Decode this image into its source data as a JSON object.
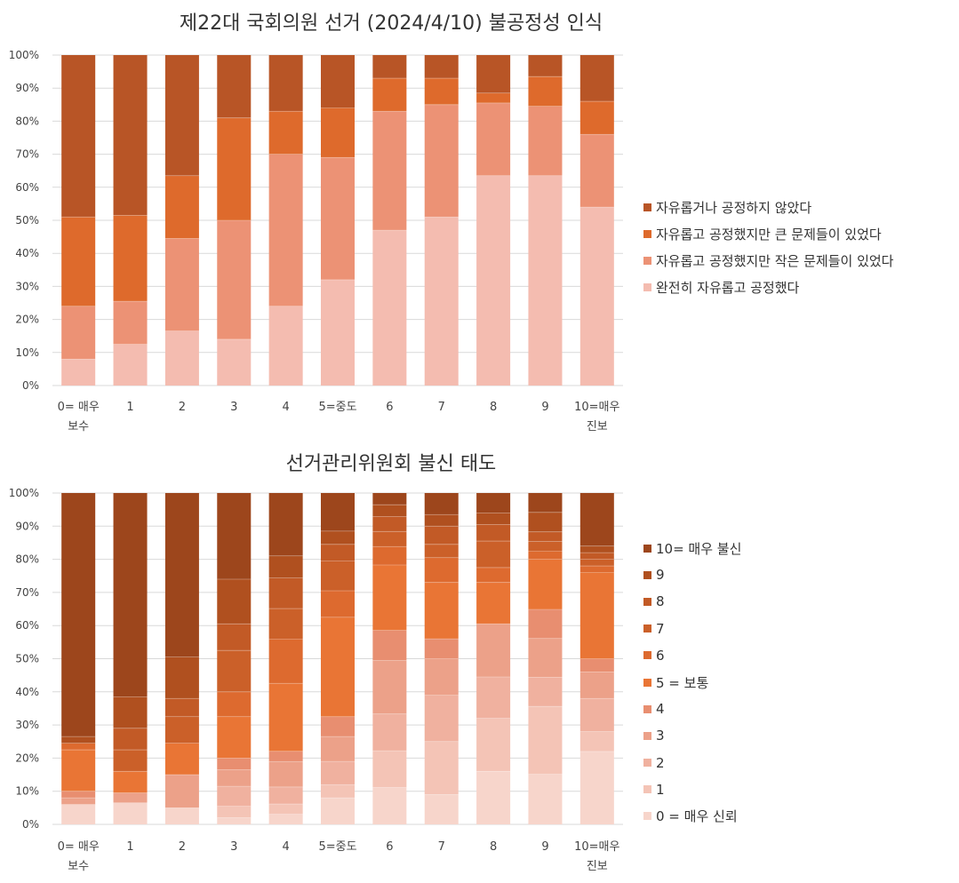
{
  "chart_data": [
    {
      "type": "bar",
      "stacked": true,
      "percent": true,
      "title": "제22대 국회의원 선거 (2024/4/10) 불공정성 인식",
      "categories": [
        [
          "0= 매우",
          "보수"
        ],
        [
          "1"
        ],
        [
          "2"
        ],
        [
          "3"
        ],
        [
          "4"
        ],
        [
          "5=중도"
        ],
        [
          "6"
        ],
        [
          "7"
        ],
        [
          "8"
        ],
        [
          "9"
        ],
        [
          "10=매우",
          "진보"
        ]
      ],
      "ylim": [
        0,
        100
      ],
      "yticks": [
        "0%",
        "10%",
        "20%",
        "30%",
        "40%",
        "50%",
        "60%",
        "70%",
        "80%",
        "90%",
        "100%"
      ],
      "grid": true,
      "legend_position": "right",
      "series": [
        {
          "name": "완전히 자유롭고 공정했다",
          "color": "#f4bcb0",
          "values": [
            8,
            12.5,
            16.5,
            14,
            24,
            32,
            47,
            51,
            63.5,
            63.5,
            54
          ]
        },
        {
          "name": "자유롭고 공정했지만 작은 문제들이 있었다",
          "color": "#ec9275",
          "values": [
            16,
            13,
            28,
            36,
            46,
            37,
            36,
            34,
            22,
            21,
            22
          ]
        },
        {
          "name": "자유롭고 공정했지만 큰 문제들이 있었다",
          "color": "#de6a2c",
          "values": [
            27,
            26,
            19,
            31,
            13,
            15,
            10,
            8,
            3,
            9,
            10
          ]
        },
        {
          "name": "자유롭거나 공정하지 않았다",
          "color": "#b85526",
          "values": [
            49,
            48.5,
            36.5,
            19,
            17,
            16,
            7,
            7,
            11.5,
            6.5,
            14
          ]
        }
      ],
      "legend_order": [
        3,
        2,
        1,
        0
      ]
    },
    {
      "type": "bar",
      "stacked": true,
      "percent": true,
      "title": "선거관리위원회 불신 태도",
      "categories": [
        [
          "0= 매우",
          "보수"
        ],
        [
          "1"
        ],
        [
          "2"
        ],
        [
          "3"
        ],
        [
          "4"
        ],
        [
          "5=중도"
        ],
        [
          "6"
        ],
        [
          "7"
        ],
        [
          "8"
        ],
        [
          "9"
        ],
        [
          "10=매우",
          "진보"
        ]
      ],
      "ylim": [
        0,
        100
      ],
      "yticks": [
        "0%",
        "10%",
        "20%",
        "30%",
        "40%",
        "50%",
        "60%",
        "70%",
        "80%",
        "90%",
        "100%"
      ],
      "grid": true,
      "legend_position": "right",
      "series": [
        {
          "name": "0 = 매우 신뢰",
          "color": "#f7d5cb",
          "values": [
            6,
            6.5,
            5,
            2,
            3,
            8,
            11,
            9,
            16,
            15.5,
            22
          ]
        },
        {
          "name": "1",
          "color": "#f4c4b6",
          "values": [
            0,
            0,
            0,
            3.5,
            3,
            4,
            11,
            16,
            16,
            21,
            6
          ]
        },
        {
          "name": "2",
          "color": "#f0b19f",
          "values": [
            0,
            0,
            0,
            6,
            5,
            7,
            11,
            14,
            12.5,
            9,
            10
          ]
        },
        {
          "name": "3",
          "color": "#eca189",
          "values": [
            2,
            3,
            10,
            5,
            7.5,
            7.5,
            16,
            11,
            16,
            12,
            8
          ]
        },
        {
          "name": "4",
          "color": "#e88e70",
          "values": [
            2,
            0,
            0,
            3.5,
            3,
            6,
            9,
            6,
            0,
            9,
            4
          ]
        },
        {
          "name": "5 = 보통",
          "color": "#e97535",
          "values": [
            12.5,
            6.5,
            9.5,
            12.5,
            20,
            30,
            19.5,
            17,
            12.5,
            15.5,
            26
          ]
        },
        {
          "name": "6",
          "color": "#dd6a2f",
          "values": [
            2,
            0,
            0,
            7.5,
            13,
            8,
            5.5,
            7.5,
            4.5,
            2.5,
            2
          ]
        },
        {
          "name": "7",
          "color": "#cb6029",
          "values": [
            0,
            6.5,
            8,
            12.5,
            9,
            9,
            4.5,
            4,
            8,
            3,
            2
          ]
        },
        {
          "name": "8",
          "color": "#c25a26",
          "values": [
            0,
            6.5,
            5.5,
            8,
            9,
            5,
            4.5,
            5.5,
            5,
            3,
            2
          ]
        },
        {
          "name": "9",
          "color": "#b0501f",
          "values": [
            2,
            9.5,
            12.5,
            13.5,
            6.5,
            4,
            3.5,
            3.5,
            3.5,
            6,
            2
          ]
        },
        {
          "name": "10= 매우 불신",
          "color": "#9d461c",
          "values": [
            73.5,
            61.5,
            49.5,
            26,
            18.5,
            11.5,
            3.5,
            6.5,
            6,
            6,
            16
          ]
        }
      ],
      "legend_order": [
        10,
        9,
        8,
        7,
        6,
        5,
        4,
        3,
        2,
        1,
        0
      ]
    }
  ]
}
